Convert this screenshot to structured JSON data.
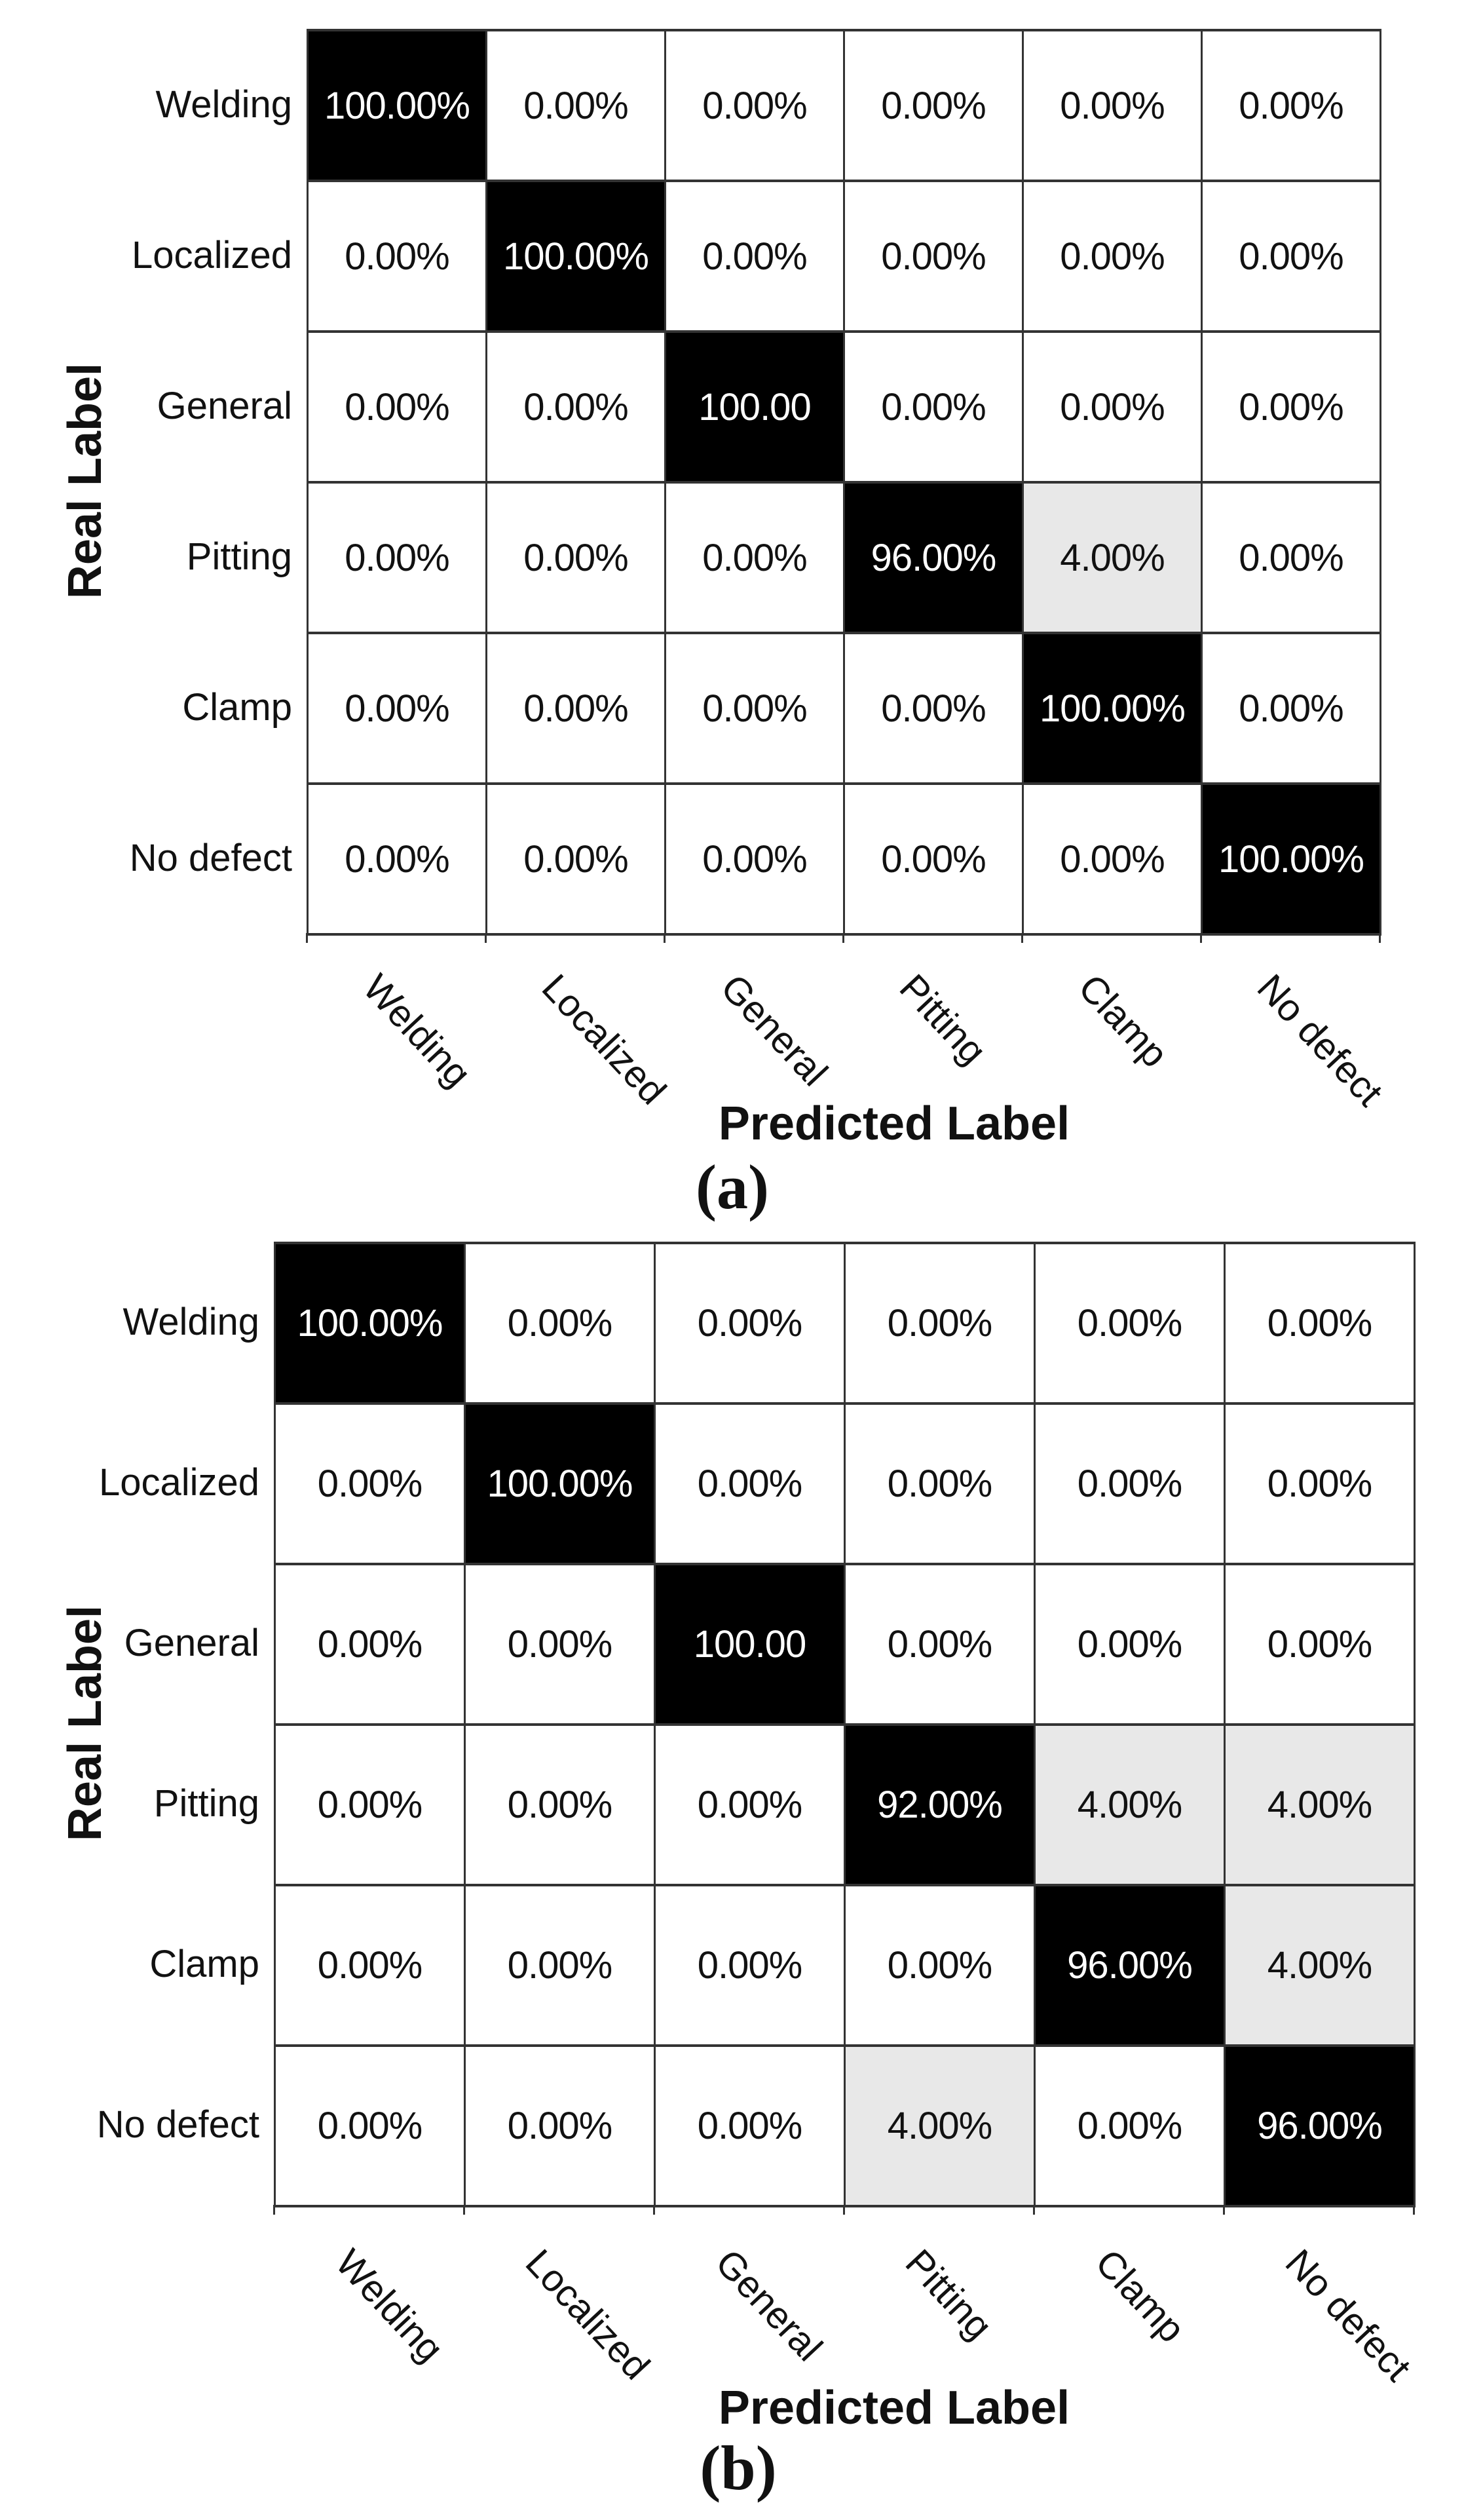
{
  "colors": {
    "diagonal_bg": "#000000",
    "diagonal_text": "#ffffff",
    "minor_bg": "#e8e8e8",
    "cell_bg": "#ffffff",
    "grid_line": "#333333"
  },
  "panels": [
    {
      "caption": "(a)",
      "x_axis_title": "Predicted Label",
      "y_axis_title": "Real Label",
      "row_labels": [
        "Welding",
        "Localized",
        "General",
        "Pitting",
        "Clamp",
        "No defect"
      ],
      "col_labels": [
        "Welding",
        "Localized",
        "General",
        "Pitting",
        "Clamp",
        "No defect"
      ],
      "cells": [
        [
          {
            "t": "100.00%",
            "s": "diag"
          },
          {
            "t": "0.00%",
            "s": "zero"
          },
          {
            "t": "0.00%",
            "s": "zero"
          },
          {
            "t": "0.00%",
            "s": "zero"
          },
          {
            "t": "0.00%",
            "s": "zero"
          },
          {
            "t": "0.00%",
            "s": "zero"
          }
        ],
        [
          {
            "t": "0.00%",
            "s": "zero"
          },
          {
            "t": "100.00%",
            "s": "diag"
          },
          {
            "t": "0.00%",
            "s": "zero"
          },
          {
            "t": "0.00%",
            "s": "zero"
          },
          {
            "t": "0.00%",
            "s": "zero"
          },
          {
            "t": "0.00%",
            "s": "zero"
          }
        ],
        [
          {
            "t": "0.00%",
            "s": "zero"
          },
          {
            "t": "0.00%",
            "s": "zero"
          },
          {
            "t": "100.00",
            "s": "diag"
          },
          {
            "t": "0.00%",
            "s": "zero"
          },
          {
            "t": "0.00%",
            "s": "zero"
          },
          {
            "t": "0.00%",
            "s": "zero"
          }
        ],
        [
          {
            "t": "0.00%",
            "s": "zero"
          },
          {
            "t": "0.00%",
            "s": "zero"
          },
          {
            "t": "0.00%",
            "s": "zero"
          },
          {
            "t": "96.00%",
            "s": "diag"
          },
          {
            "t": "4.00%",
            "s": "minor"
          },
          {
            "t": "0.00%",
            "s": "zero"
          }
        ],
        [
          {
            "t": "0.00%",
            "s": "zero"
          },
          {
            "t": "0.00%",
            "s": "zero"
          },
          {
            "t": "0.00%",
            "s": "zero"
          },
          {
            "t": "0.00%",
            "s": "zero"
          },
          {
            "t": "100.00%",
            "s": "diag"
          },
          {
            "t": "0.00%",
            "s": "zero"
          }
        ],
        [
          {
            "t": "0.00%",
            "s": "zero"
          },
          {
            "t": "0.00%",
            "s": "zero"
          },
          {
            "t": "0.00%",
            "s": "zero"
          },
          {
            "t": "0.00%",
            "s": "zero"
          },
          {
            "t": "0.00%",
            "s": "zero"
          },
          {
            "t": "100.00%",
            "s": "diag"
          }
        ]
      ]
    },
    {
      "caption": "(b)",
      "x_axis_title": "Predicted Label",
      "y_axis_title": "Real Label",
      "row_labels": [
        "Welding",
        "Localized",
        "General",
        "Pitting",
        "Clamp",
        "No defect"
      ],
      "col_labels": [
        "Welding",
        "Localized",
        "General",
        "Pitting",
        "Clamp",
        "No defect"
      ],
      "cells": [
        [
          {
            "t": "100.00%",
            "s": "diag"
          },
          {
            "t": "0.00%",
            "s": "zero"
          },
          {
            "t": "0.00%",
            "s": "zero"
          },
          {
            "t": "0.00%",
            "s": "zero"
          },
          {
            "t": "0.00%",
            "s": "zero"
          },
          {
            "t": "0.00%",
            "s": "zero"
          }
        ],
        [
          {
            "t": "0.00%",
            "s": "zero"
          },
          {
            "t": "100.00%",
            "s": "diag"
          },
          {
            "t": "0.00%",
            "s": "zero"
          },
          {
            "t": "0.00%",
            "s": "zero"
          },
          {
            "t": "0.00%",
            "s": "zero"
          },
          {
            "t": "0.00%",
            "s": "zero"
          }
        ],
        [
          {
            "t": "0.00%",
            "s": "zero"
          },
          {
            "t": "0.00%",
            "s": "zero"
          },
          {
            "t": "100.00",
            "s": "diag"
          },
          {
            "t": "0.00%",
            "s": "zero"
          },
          {
            "t": "0.00%",
            "s": "zero"
          },
          {
            "t": "0.00%",
            "s": "zero"
          }
        ],
        [
          {
            "t": "0.00%",
            "s": "zero"
          },
          {
            "t": "0.00%",
            "s": "zero"
          },
          {
            "t": "0.00%",
            "s": "zero"
          },
          {
            "t": "92.00%",
            "s": "diag"
          },
          {
            "t": "4.00%",
            "s": "minor"
          },
          {
            "t": "4.00%",
            "s": "minor"
          }
        ],
        [
          {
            "t": "0.00%",
            "s": "zero"
          },
          {
            "t": "0.00%",
            "s": "zero"
          },
          {
            "t": "0.00%",
            "s": "zero"
          },
          {
            "t": "0.00%",
            "s": "zero"
          },
          {
            "t": "96.00%",
            "s": "diag"
          },
          {
            "t": "4.00%",
            "s": "minor"
          }
        ],
        [
          {
            "t": "0.00%",
            "s": "zero"
          },
          {
            "t": "0.00%",
            "s": "zero"
          },
          {
            "t": "0.00%",
            "s": "zero"
          },
          {
            "t": "4.00%",
            "s": "minor"
          },
          {
            "t": "0.00%",
            "s": "zero"
          },
          {
            "t": "96.00%",
            "s": "diag"
          }
        ]
      ]
    }
  ],
  "chart_data": [
    {
      "type": "heatmap",
      "subtype": "confusion-matrix",
      "title": "(a)",
      "xlabel": "Predicted Label",
      "ylabel": "Real Label",
      "x_categories": [
        "Welding",
        "Localized",
        "General",
        "Pitting",
        "Clamp",
        "No defect"
      ],
      "y_categories": [
        "Welding",
        "Localized",
        "General",
        "Pitting",
        "Clamp",
        "No defect"
      ],
      "values_percent": [
        [
          100,
          0,
          0,
          0,
          0,
          0
        ],
        [
          0,
          100,
          0,
          0,
          0,
          0
        ],
        [
          0,
          0,
          100,
          0,
          0,
          0
        ],
        [
          0,
          0,
          0,
          96,
          4,
          0
        ],
        [
          0,
          0,
          0,
          0,
          100,
          0
        ],
        [
          0,
          0,
          0,
          0,
          0,
          100
        ]
      ],
      "legend": "none",
      "grid": true
    },
    {
      "type": "heatmap",
      "subtype": "confusion-matrix",
      "title": "(b)",
      "xlabel": "Predicted Label",
      "ylabel": "Real Label",
      "x_categories": [
        "Welding",
        "Localized",
        "General",
        "Pitting",
        "Clamp",
        "No defect"
      ],
      "y_categories": [
        "Welding",
        "Localized",
        "General",
        "Pitting",
        "Clamp",
        "No defect"
      ],
      "values_percent": [
        [
          100,
          0,
          0,
          0,
          0,
          0
        ],
        [
          0,
          100,
          0,
          0,
          0,
          0
        ],
        [
          0,
          0,
          100,
          0,
          0,
          0
        ],
        [
          0,
          0,
          0,
          92,
          4,
          4
        ],
        [
          0,
          0,
          0,
          0,
          96,
          4
        ],
        [
          0,
          0,
          0,
          4,
          0,
          96
        ]
      ],
      "legend": "none",
      "grid": true
    }
  ]
}
